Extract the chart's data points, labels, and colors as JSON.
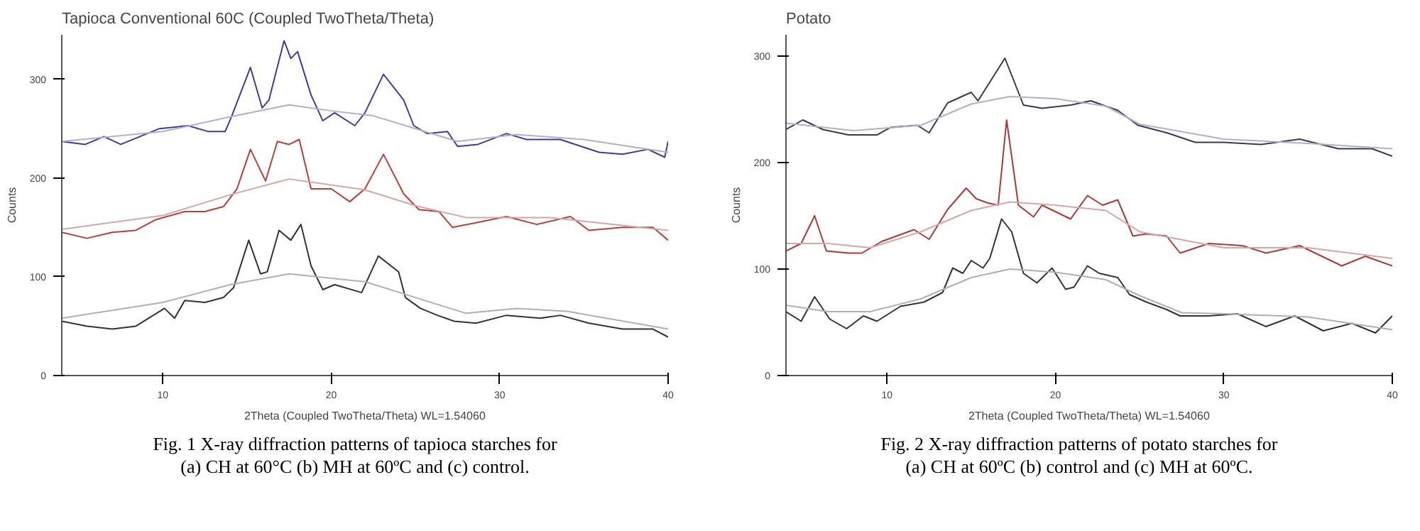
{
  "chart_data": [
    {
      "type": "line",
      "title": "Tapioca Conventional 60C (Coupled TwoTheta/Theta)",
      "xlabel": "2Theta (Coupled TwoTheta/Theta) WL=1.54060",
      "ylabel": "Counts",
      "xlim": [
        4,
        40
      ],
      "ylim": [
        0,
        345
      ],
      "xticks": [
        10,
        20,
        30,
        40
      ],
      "yticks": [
        0,
        100,
        200,
        300
      ],
      "grid": false,
      "annotations": [
        "Fig. 1  X-ray diffraction patterns of tapioca starches for",
        "(a) CH at 60°C (b) MH at 60ºC and (c) control."
      ],
      "series": [
        {
          "color": "#3b3f9a",
          "x": [
            4,
            5.4,
            6.5,
            7.5,
            9.8,
            11.5,
            12.7,
            13.7,
            14.1,
            15.2,
            15.9,
            16.3,
            17.2,
            17.6,
            18.0,
            18.8,
            19.5,
            20.2,
            21.4,
            22.0,
            23.1,
            24.3,
            24.9,
            25.7,
            26.9,
            27.5,
            28.7,
            30.4,
            31.6,
            33.6,
            35.9,
            37.3,
            38.8,
            39.8,
            40
          ],
          "values": [
            237,
            234,
            242,
            234,
            250,
            253,
            247,
            247,
            263,
            312,
            271,
            279,
            339,
            321,
            328,
            284,
            258,
            266,
            253,
            266,
            305,
            279,
            253,
            245,
            247,
            232,
            234,
            245,
            239,
            239,
            226,
            224,
            229,
            221,
            237
          ]
        },
        {
          "color": "#b0b0c8",
          "x": [
            4,
            10,
            14,
            17.5,
            20,
            22.5,
            25,
            27.5,
            31,
            35,
            40
          ],
          "values": [
            237,
            247,
            262,
            274,
            268,
            263,
            250,
            237,
            244,
            239,
            226
          ]
        },
        {
          "color": "#b8403a",
          "x": [
            4,
            5.5,
            7,
            8.4,
            9.6,
            11.3,
            12.5,
            13.6,
            14.4,
            15.2,
            16.1,
            16.8,
            17.5,
            18.1,
            18.8,
            20,
            21.1,
            22,
            23.1,
            24.3,
            25.2,
            26.4,
            27.2,
            28.7,
            30.4,
            32.2,
            34.2,
            35.3,
            37.3,
            39.1,
            40
          ],
          "values": [
            145,
            139,
            145,
            147,
            158,
            166,
            166,
            171,
            189,
            229,
            197,
            237,
            234,
            239,
            189,
            189,
            176,
            189,
            224,
            184,
            168,
            166,
            150,
            155,
            161,
            153,
            161,
            147,
            150,
            150,
            137
          ]
        },
        {
          "color": "#d0a8a8",
          "x": [
            4,
            10,
            14,
            17.5,
            22,
            25,
            28,
            33,
            40
          ],
          "values": [
            148,
            162,
            183,
            199,
            188,
            172,
            160,
            160,
            147
          ]
        },
        {
          "color": "#333333",
          "x": [
            4,
            5.5,
            7,
            8.4,
            10.1,
            10.7,
            11.3,
            12.5,
            13.6,
            14.2,
            15.1,
            15.8,
            16.2,
            16.9,
            17.6,
            18.2,
            18.8,
            19.5,
            20.2,
            21.8,
            22.8,
            24,
            24.4,
            25.3,
            26.3,
            27.3,
            28.6,
            30.4,
            32.4,
            33.6,
            35.3,
            37.3,
            39.1,
            40
          ],
          "values": [
            55,
            50,
            47,
            50,
            68,
            58,
            76,
            74,
            79,
            89,
            137,
            103,
            105,
            147,
            137,
            153,
            111,
            87,
            92,
            84,
            121,
            105,
            79,
            68,
            61,
            55,
            53,
            61,
            58,
            61,
            53,
            47,
            47,
            39
          ]
        },
        {
          "color": "#b0b0b0",
          "x": [
            4,
            10,
            14,
            17.5,
            22,
            25,
            28,
            31,
            34,
            40
          ],
          "values": [
            58,
            74,
            92,
            103,
            95,
            79,
            63,
            68,
            65,
            47
          ]
        }
      ]
    },
    {
      "type": "line",
      "title": "Potato",
      "xlabel": "2Theta (Coupled TwoTheta/Theta) WL=1.54060",
      "ylabel": "Counts",
      "xlim": [
        4,
        40
      ],
      "ylim": [
        0,
        320
      ],
      "xticks": [
        10,
        20,
        30,
        40
      ],
      "yticks": [
        0,
        100,
        200,
        300
      ],
      "grid": false,
      "annotations": [
        "Fig. 2  X-ray diffraction patterns of potato starches for",
        "(a) CH at 60ºC (b) control and (c) MH at 60ºC."
      ],
      "series": [
        {
          "color": "#3a3a4a",
          "x": [
            4,
            5.0,
            6.2,
            7.7,
            9.4,
            10.2,
            11.8,
            12.5,
            13.6,
            15.0,
            15.4,
            17.0,
            18.1,
            19.2,
            20.9,
            22.1,
            23.7,
            24.9,
            26.6,
            28.3,
            30.0,
            32.2,
            34.5,
            36.8,
            38.8,
            40
          ],
          "values": [
            231,
            240,
            231,
            226,
            226,
            233,
            235,
            228,
            256,
            266,
            258,
            298,
            254,
            251,
            254,
            258,
            249,
            235,
            228,
            219,
            219,
            217,
            222,
            213,
            213,
            206
          ]
        },
        {
          "color": "#b0b0c8",
          "x": [
            4,
            8,
            12,
            15,
            17.3,
            20,
            23,
            25,
            30,
            35,
            40
          ],
          "values": [
            237,
            230,
            235,
            255,
            262,
            260,
            253,
            236,
            222,
            218,
            213
          ]
        },
        {
          "color": "#a83a3a",
          "x": [
            4,
            4.9,
            5.7,
            6.4,
            7.7,
            8.5,
            9.7,
            11.6,
            12.5,
            13.6,
            14.7,
            15.3,
            16.0,
            16.6,
            17.1,
            17.8,
            18.7,
            19.2,
            20.9,
            21.9,
            22.8,
            23.7,
            24.6,
            25.4,
            26.6,
            27.4,
            29.1,
            31.1,
            32.5,
            34.5,
            37.0,
            38.4,
            40
          ],
          "values": [
            117,
            124,
            150,
            117,
            115,
            115,
            126,
            137,
            128,
            156,
            176,
            166,
            162,
            160,
            240,
            160,
            149,
            160,
            147,
            169,
            160,
            165,
            131,
            133,
            131,
            115,
            124,
            122,
            115,
            122,
            103,
            112,
            103
          ]
        },
        {
          "color": "#d0a8a8",
          "x": [
            4,
            6.5,
            9,
            12,
            15,
            17.3,
            20,
            23,
            25,
            30,
            35,
            40
          ],
          "values": [
            124,
            124,
            120,
            135,
            155,
            163,
            160,
            155,
            135,
            120,
            120,
            110
          ]
        },
        {
          "color": "#333333",
          "x": [
            4,
            4.9,
            5.7,
            6.6,
            7.6,
            8.6,
            9.4,
            10.8,
            12.2,
            13.3,
            13.9,
            14.5,
            15.0,
            15.7,
            16.1,
            16.8,
            17.4,
            18.1,
            18.9,
            19.8,
            20.6,
            21.1,
            21.9,
            22.6,
            23.7,
            24.4,
            25.4,
            26.6,
            27.4,
            29.1,
            30.8,
            32.5,
            34.2,
            35.9,
            37.6,
            39.0,
            40
          ],
          "values": [
            60,
            51,
            74,
            53,
            44,
            56,
            51,
            65,
            69,
            78,
            101,
            96,
            108,
            101,
            110,
            147,
            135,
            96,
            87,
            101,
            81,
            83,
            103,
            96,
            92,
            76,
            69,
            62,
            56,
            56,
            58,
            46,
            56,
            42,
            49,
            40,
            56
          ]
        },
        {
          "color": "#b0b0b0",
          "x": [
            4,
            6.5,
            9,
            12,
            15,
            17.3,
            20,
            23,
            25,
            27.5,
            30,
            35,
            40
          ],
          "values": [
            66,
            60,
            60,
            72,
            92,
            100,
            97,
            90,
            75,
            59,
            58,
            55,
            43
          ]
        }
      ]
    }
  ]
}
